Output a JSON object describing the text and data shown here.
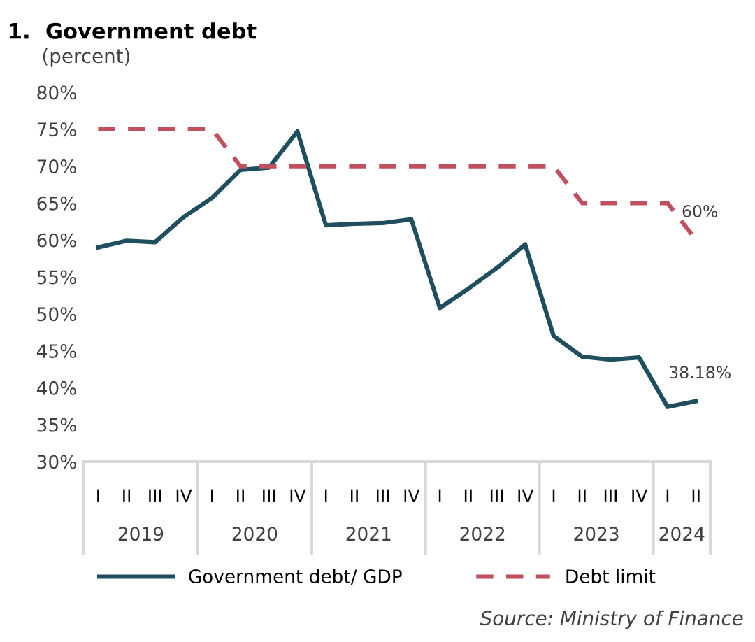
{
  "chart_data": {
    "type": "line",
    "title": "1.  Government debt",
    "subtitle": "(percent)",
    "categories": [
      "I",
      "II",
      "III",
      "IV",
      "I",
      "II",
      "III",
      "IV",
      "I",
      "II",
      "III",
      "IV",
      "I",
      "II",
      "III",
      "IV",
      "I",
      "II",
      "III",
      "IV",
      "I",
      "II"
    ],
    "series": [
      {
        "name": "Government debt/ GDP",
        "color": "#1f4e5f",
        "line_style": "solid",
        "values": [
          59.0,
          59.9,
          59.7,
          63.1,
          65.7,
          69.5,
          69.8,
          74.7,
          62.0,
          62.2,
          62.3,
          62.8,
          50.8,
          53.4,
          56.2,
          59.4,
          47.0,
          44.2,
          43.8,
          44.1,
          37.4,
          38.18
        ],
        "value_labels": [
          null,
          null,
          null,
          null,
          null,
          null,
          null,
          null,
          null,
          null,
          null,
          null,
          null,
          null,
          null,
          null,
          null,
          null,
          null,
          null,
          null,
          "38.18%"
        ]
      },
      {
        "name": "Debt limit",
        "color": "#c0505e",
        "line_style": "dashed",
        "values": [
          75,
          75,
          75,
          75,
          75,
          70,
          70,
          70,
          70,
          70,
          70,
          70,
          70,
          70,
          70,
          70,
          70,
          65,
          65,
          65,
          65,
          60
        ],
        "value_labels": [
          null,
          null,
          null,
          null,
          null,
          null,
          null,
          null,
          null,
          null,
          null,
          null,
          null,
          null,
          null,
          null,
          null,
          null,
          null,
          null,
          null,
          "60%"
        ]
      }
    ],
    "ylim": [
      30,
      80
    ],
    "yticks": [
      {
        "value": 30,
        "label": "30%"
      },
      {
        "value": 35,
        "label": "35%"
      },
      {
        "value": 40,
        "label": "40%"
      },
      {
        "value": 45,
        "label": "45%"
      },
      {
        "value": 50,
        "label": "50%"
      },
      {
        "value": 55,
        "label": "55%"
      },
      {
        "value": 60,
        "label": "60%"
      },
      {
        "value": 65,
        "label": "65%"
      },
      {
        "value": 70,
        "label": "70%"
      },
      {
        "value": 75,
        "label": "75%"
      },
      {
        "value": 80,
        "label": "80%"
      }
    ],
    "grid": false,
    "legend": "bottom",
    "marker": "none",
    "annotations": [
      "2019",
      "2020",
      "2021",
      "2022",
      "2023",
      "2024",
      "Source: Ministry of Finance"
    ]
  }
}
